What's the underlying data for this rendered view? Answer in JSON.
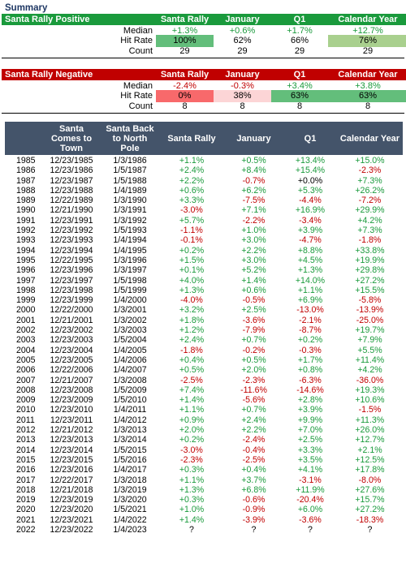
{
  "summary_title": "Summary",
  "positive": {
    "title": "Santa Rally Positive",
    "columns": [
      "Santa Rally",
      "January",
      "Q1",
      "Calendar Year"
    ],
    "median_label": "Median",
    "median": [
      "+1.3%",
      "+0.6%",
      "+1.7%",
      "+12.7%"
    ],
    "hit_label": "Hit Rate",
    "hit": [
      "100%",
      "62%",
      "66%",
      "76%"
    ],
    "count_label": "Count",
    "count": [
      "29",
      "29",
      "29",
      "29"
    ]
  },
  "negative": {
    "title": "Santa Rally Negative",
    "columns": [
      "Santa Rally",
      "January",
      "Q1",
      "Calendar Year"
    ],
    "median_label": "Median",
    "median": [
      "-2.4%",
      "-0.3%",
      "+3.4%",
      "+3.8%"
    ],
    "hit_label": "Hit Rate",
    "hit": [
      "0%",
      "38%",
      "63%",
      "63%"
    ],
    "count_label": "Count",
    "count": [
      "8",
      "8",
      "8",
      "8"
    ]
  },
  "main_table": {
    "headers": [
      "",
      "Santa\nComes to\nTown",
      "Santa Back\nto North\nPole",
      "Santa Rally",
      "January",
      "Q1",
      "Calendar Year"
    ],
    "rows": [
      [
        "1985",
        "12/23/1985",
        "1/3/1986",
        "+1.1%",
        "+0.5%",
        "+13.4%",
        "+15.0%"
      ],
      [
        "1986",
        "12/23/1986",
        "1/5/1987",
        "+2.4%",
        "+8.4%",
        "+15.4%",
        "-2.3%"
      ],
      [
        "1987",
        "12/23/1987",
        "1/5/1988",
        "+2.2%",
        "-0.7%",
        "+0.0%",
        "+7.3%"
      ],
      [
        "1988",
        "12/23/1988",
        "1/4/1989",
        "+0.6%",
        "+6.2%",
        "+5.3%",
        "+26.2%"
      ],
      [
        "1989",
        "12/22/1989",
        "1/3/1990",
        "+3.3%",
        "-7.5%",
        "-4.4%",
        "-7.2%"
      ],
      [
        "1990",
        "12/21/1990",
        "1/3/1991",
        "-3.0%",
        "+7.1%",
        "+16.9%",
        "+29.9%"
      ],
      [
        "1991",
        "12/23/1991",
        "1/3/1992",
        "+5.7%",
        "-2.2%",
        "-3.4%",
        "+4.2%"
      ],
      [
        "1992",
        "12/23/1992",
        "1/5/1993",
        "-1.1%",
        "+1.0%",
        "+3.9%",
        "+7.3%"
      ],
      [
        "1993",
        "12/23/1993",
        "1/4/1994",
        "-0.1%",
        "+3.0%",
        "-4.7%",
        "-1.8%"
      ],
      [
        "1994",
        "12/23/1994",
        "1/4/1995",
        "+0.2%",
        "+2.2%",
        "+8.8%",
        "+33.8%"
      ],
      [
        "1995",
        "12/22/1995",
        "1/3/1996",
        "+1.5%",
        "+3.0%",
        "+4.5%",
        "+19.9%"
      ],
      [
        "1996",
        "12/23/1996",
        "1/3/1997",
        "+0.1%",
        "+5.2%",
        "+1.3%",
        "+29.8%"
      ],
      [
        "1997",
        "12/23/1997",
        "1/5/1998",
        "+4.0%",
        "+1.4%",
        "+14.0%",
        "+27.2%"
      ],
      [
        "1998",
        "12/23/1998",
        "1/5/1999",
        "+1.3%",
        "+0.6%",
        "+1.1%",
        "+15.5%"
      ],
      [
        "1999",
        "12/23/1999",
        "1/4/2000",
        "-4.0%",
        "-0.5%",
        "+6.9%",
        "-5.8%"
      ],
      [
        "2000",
        "12/22/2000",
        "1/3/2001",
        "+3.2%",
        "+2.5%",
        "-13.0%",
        "-13.9%"
      ],
      [
        "2001",
        "12/21/2001",
        "1/3/2002",
        "+1.8%",
        "-3.6%",
        "-2.1%",
        "-25.0%"
      ],
      [
        "2002",
        "12/23/2002",
        "1/3/2003",
        "+1.2%",
        "-7.9%",
        "-8.7%",
        "+19.7%"
      ],
      [
        "2003",
        "12/23/2003",
        "1/5/2004",
        "+2.4%",
        "+0.7%",
        "+0.2%",
        "+7.9%"
      ],
      [
        "2004",
        "12/23/2004",
        "1/4/2005",
        "-1.8%",
        "-0.2%",
        "-0.3%",
        "+5.5%"
      ],
      [
        "2005",
        "12/23/2005",
        "1/4/2006",
        "+0.4%",
        "+0.5%",
        "+1.7%",
        "+11.4%"
      ],
      [
        "2006",
        "12/22/2006",
        "1/4/2007",
        "+0.5%",
        "+2.0%",
        "+0.8%",
        "+4.2%"
      ],
      [
        "2007",
        "12/21/2007",
        "1/3/2008",
        "-2.5%",
        "-2.3%",
        "-6.3%",
        "-36.0%"
      ],
      [
        "2008",
        "12/23/2008",
        "1/5/2009",
        "+7.4%",
        "-11.6%",
        "-14.6%",
        "+19.3%"
      ],
      [
        "2009",
        "12/23/2009",
        "1/5/2010",
        "+1.4%",
        "-5.6%",
        "+2.8%",
        "+10.6%"
      ],
      [
        "2010",
        "12/23/2010",
        "1/4/2011",
        "+1.1%",
        "+0.7%",
        "+3.9%",
        "-1.5%"
      ],
      [
        "2011",
        "12/23/2011",
        "1/4/2012",
        "+0.9%",
        "+2.4%",
        "+9.9%",
        "+11.3%"
      ],
      [
        "2012",
        "12/21/2012",
        "1/3/2013",
        "+2.0%",
        "+2.2%",
        "+7.0%",
        "+26.0%"
      ],
      [
        "2013",
        "12/23/2013",
        "1/3/2014",
        "+0.2%",
        "-2.4%",
        "+2.5%",
        "+12.7%"
      ],
      [
        "2014",
        "12/23/2014",
        "1/5/2015",
        "-3.0%",
        "-0.4%",
        "+3.3%",
        "+2.1%"
      ],
      [
        "2015",
        "12/23/2015",
        "1/5/2016",
        "-2.3%",
        "-2.5%",
        "+3.5%",
        "+12.5%"
      ],
      [
        "2016",
        "12/23/2016",
        "1/4/2017",
        "+0.3%",
        "+0.4%",
        "+4.1%",
        "+17.8%"
      ],
      [
        "2017",
        "12/22/2017",
        "1/3/2018",
        "+1.1%",
        "+3.7%",
        "-3.1%",
        "-8.0%"
      ],
      [
        "2018",
        "12/21/2018",
        "1/3/2019",
        "+1.3%",
        "+6.8%",
        "+11.9%",
        "+27.6%"
      ],
      [
        "2019",
        "12/23/2019",
        "1/3/2020",
        "+0.3%",
        "-0.6%",
        "-20.4%",
        "+15.7%"
      ],
      [
        "2020",
        "12/23/2020",
        "1/5/2021",
        "+1.0%",
        "-0.9%",
        "+6.0%",
        "+27.2%"
      ],
      [
        "2021",
        "12/23/2021",
        "1/4/2022",
        "+1.4%",
        "-3.9%",
        "-3.6%",
        "-18.3%"
      ],
      [
        "2022",
        "12/23/2022",
        "1/4/2023",
        "?",
        "?",
        "?",
        "?"
      ]
    ]
  },
  "colors": {
    "positive_header": "#1a9a3c",
    "negative_header": "#c00000",
    "main_header": "#44546a",
    "positive_text": "#1a9a3c",
    "negative_text": "#c00000"
  }
}
